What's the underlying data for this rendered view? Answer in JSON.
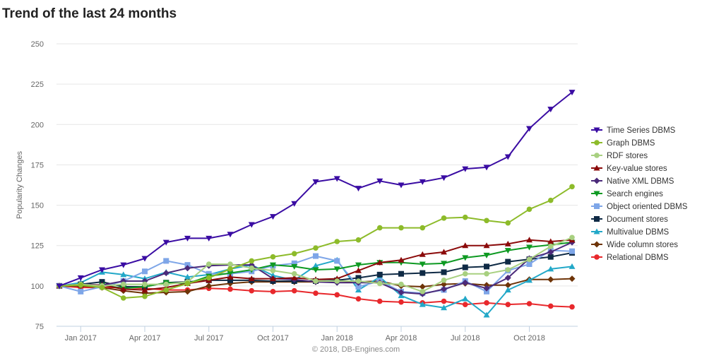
{
  "page": {
    "title": "Trend of the last 24 months"
  },
  "chart_data": {
    "type": "line",
    "title": "Trend of the last 24 months",
    "ylabel": "Popularity Changes",
    "xlabel": "",
    "ylim": [
      75,
      250
    ],
    "yticks": [
      75,
      100,
      125,
      150,
      175,
      200,
      225,
      250
    ],
    "x_tick_labels": [
      "Jan 2017",
      "Apr 2017",
      "Jul 2017",
      "Oct 2017",
      "Jan 2018",
      "Apr 2018",
      "Jul 2018",
      "Oct 2018"
    ],
    "x_tick_indices": [
      1,
      4,
      7,
      10,
      13,
      16,
      19,
      22
    ],
    "categories": [
      "Dec 2016",
      "Jan 2017",
      "Feb 2017",
      "Mar 2017",
      "Apr 2017",
      "May 2017",
      "Jun 2017",
      "Jul 2017",
      "Aug 2017",
      "Sep 2017",
      "Oct 2017",
      "Nov 2017",
      "Dec 2017",
      "Jan 2018",
      "Feb 2018",
      "Mar 2018",
      "Apr 2018",
      "May 2018",
      "Jun 2018",
      "Jul 2018",
      "Aug 2018",
      "Sep 2018",
      "Oct 2018",
      "Nov 2018",
      "Dec 2018"
    ],
    "grid": true,
    "legend_position": "right",
    "credits": "© 2018, DB-Engines.com",
    "series": [
      {
        "name": "Time Series DBMS",
        "color": "#3a0ca3",
        "marker": "triangle-down",
        "values": [
          100,
          105,
          110,
          113,
          117,
          127,
          129.5,
          129.5,
          132,
          138,
          143,
          151,
          164.5,
          166.5,
          160.5,
          165,
          162.5,
          164.5,
          167,
          172.5,
          173.5,
          180,
          197.5,
          209.5,
          220
        ]
      },
      {
        "name": "Graph DBMS",
        "color": "#8dbb2a",
        "marker": "circle",
        "values": [
          100,
          100.5,
          99,
          92.5,
          93.5,
          97.5,
          101.5,
          105,
          110.5,
          115.5,
          118,
          120,
          123.5,
          127.5,
          128.5,
          136,
          136,
          136,
          142,
          142.5,
          140.5,
          139,
          147.5,
          153,
          161.5
        ]
      },
      {
        "name": "RDF stores",
        "color": "#a8d080",
        "marker": "circle",
        "values": [
          100,
          101,
          100,
          101,
          101,
          101,
          102.5,
          113.5,
          113.5,
          111,
          109.5,
          107.5,
          103,
          103,
          103,
          101.5,
          101,
          96.5,
          103.5,
          107.5,
          107.5,
          110,
          116.5,
          124.5,
          130
        ]
      },
      {
        "name": "Key-value stores",
        "color": "#8b0a0a",
        "marker": "triangle-up",
        "values": [
          100,
          100.5,
          100.5,
          98,
          97.5,
          99,
          101.5,
          103.5,
          105.5,
          104.5,
          104.5,
          105,
          104,
          104.5,
          109.5,
          114.5,
          116,
          119.5,
          121,
          125,
          125,
          126,
          128.5,
          127.5,
          128.5
        ]
      },
      {
        "name": "Native XML DBMS",
        "color": "#4b2a7a",
        "marker": "diamond",
        "values": [
          100,
          101,
          100.5,
          103,
          103,
          108,
          111,
          112.5,
          113,
          113,
          104.5,
          104,
          102.5,
          102,
          102,
          102,
          96,
          95,
          98,
          102,
          98.5,
          105,
          117,
          121,
          127
        ]
      },
      {
        "name": "Search engines",
        "color": "#0e9a22",
        "marker": "triangle-down",
        "values": [
          100,
          100.5,
          100.5,
          98.5,
          99.5,
          102,
          101.5,
          106,
          108,
          110,
          113,
          112,
          110,
          110.5,
          113,
          114.5,
          114.5,
          113.5,
          114,
          117.5,
          119,
          122,
          124,
          125.5,
          127
        ]
      },
      {
        "name": "Object oriented DBMS",
        "color": "#7ea6e8",
        "marker": "square",
        "values": [
          100,
          96.5,
          99.5,
          103,
          109,
          115.5,
          113,
          107.5,
          107.5,
          109,
          112.5,
          114,
          118.5,
          115.5,
          99.5,
          103,
          96.5,
          95.5,
          97.5,
          103,
          96.5,
          109.5,
          113.5,
          122,
          121.5
        ]
      },
      {
        "name": "Document stores",
        "color": "#0f2a45",
        "marker": "square",
        "values": [
          100,
          101,
          102.5,
          99.5,
          99.5,
          102,
          102.5,
          103.5,
          103.5,
          103.5,
          103,
          103,
          103,
          103.5,
          105,
          107,
          107.5,
          108,
          108.5,
          111.5,
          112,
          115,
          116.5,
          118,
          120.5
        ]
      },
      {
        "name": "Multivalue DBMS",
        "color": "#22a8c8",
        "marker": "triangle-up",
        "values": [
          100,
          102,
          108.5,
          107,
          104.5,
          108.5,
          105.5,
          107,
          110.5,
          113,
          106.5,
          103.5,
          112.5,
          116,
          97.5,
          105.5,
          94,
          88.5,
          86.5,
          92,
          82,
          97.5,
          103.5,
          110.5,
          112
        ]
      },
      {
        "name": "Wide column stores",
        "color": "#6e3408",
        "marker": "diamond",
        "values": [
          100,
          100,
          99,
          97,
          95.5,
          96,
          96.5,
          100,
          101.5,
          102.5,
          102.5,
          102.5,
          102.5,
          103,
          102.5,
          103,
          100,
          99.5,
          101,
          101.5,
          100.5,
          100.5,
          104,
          104,
          104.5
        ]
      },
      {
        "name": "Relational DBMS",
        "color": "#e8282c",
        "marker": "circle",
        "values": [
          100,
          99,
          99,
          99,
          98.5,
          97.5,
          97.5,
          98.5,
          98,
          97,
          96.5,
          97,
          95.5,
          94.5,
          92,
          90.5,
          90,
          89.5,
          90.5,
          88.5,
          89.5,
          88.5,
          89,
          87.5,
          87
        ]
      }
    ]
  }
}
